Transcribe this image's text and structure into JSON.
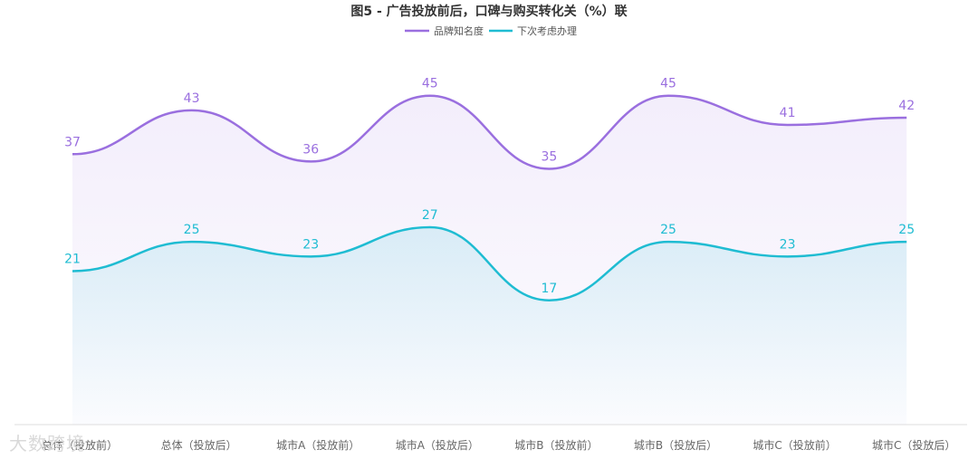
{
  "chart_data": {
    "type": "area",
    "title": "图5 - 广告投放前后，口碑与购买转化关（%）联",
    "categories": [
      "总体（投放前）",
      "总体（投放后）",
      "城市A（投放前）",
      "城市A（投放后）",
      "城市B（投放前）",
      "城市B（投放后）",
      "城市C（投放前）",
      "城市C（投放后）"
    ],
    "series": [
      {
        "name": "品牌知名度",
        "values": [
          37,
          43,
          36,
          45,
          35,
          45,
          41,
          42
        ],
        "color": "#9a6fdf"
      },
      {
        "name": "下次考虑办理",
        "values": [
          21,
          25,
          23,
          27,
          17,
          25,
          23,
          25
        ],
        "color": "#1fbcd2"
      }
    ],
    "ylim": [
      0,
      55
    ],
    "grid": false,
    "legend_position": "top-center",
    "smooth": true
  },
  "watermark": "大数跨境"
}
